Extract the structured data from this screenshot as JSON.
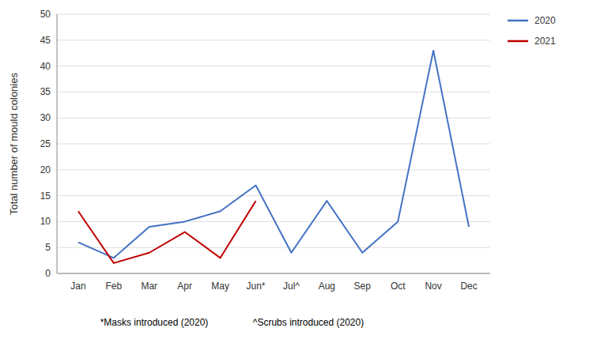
{
  "chart_data": {
    "type": "line",
    "categories": [
      "Jan",
      "Feb",
      "Mar",
      "Apr",
      "May",
      "Jun*",
      "Jul^",
      "Aug",
      "Sep",
      "Oct",
      "Nov",
      "Dec"
    ],
    "series": [
      {
        "name": "2020",
        "color": "#4472C4",
        "values": [
          6,
          3,
          9,
          10,
          12,
          17,
          4,
          14,
          4,
          10,
          43,
          9
        ]
      },
      {
        "name": "2021",
        "color": "#C00000",
        "values": [
          12,
          2,
          4,
          8,
          3,
          14,
          null,
          null,
          null,
          null,
          null,
          null
        ]
      }
    ],
    "y_label": "Total number of mould colonies",
    "ylim": [
      0,
      50
    ],
    "yticks": [
      0,
      5,
      10,
      15,
      20,
      25,
      30,
      35,
      40,
      45,
      50
    ],
    "grid": true,
    "legend": "upper right",
    "annotations": [
      "*Masks introduced (2020)",
      "^Scrubs introduced (2020)"
    ]
  }
}
